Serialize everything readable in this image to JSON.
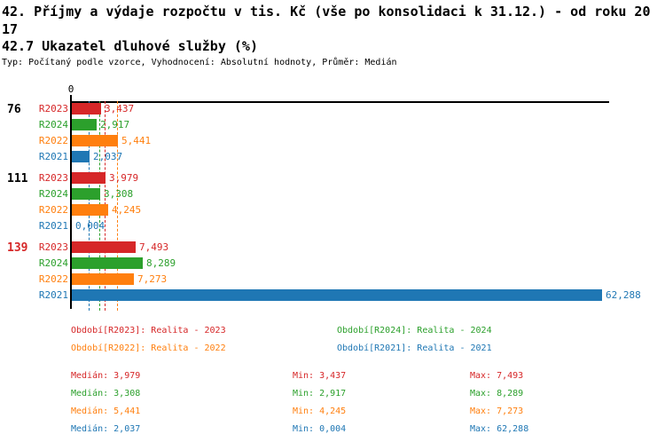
{
  "header": {
    "title": "42. Příjmy a výdaje rozpočtu v tis. Kč (vše po konsolidaci k 31.12.) - od roku 2017",
    "subtitle": "42.7 Ukazatel dluhové služby (%)",
    "meta": "Typ: Počítaný podle vzorce, Vyhodnocení: Absolutní hodnoty, Průměr: Medián"
  },
  "chart_data": {
    "type": "bar",
    "orientation": "horizontal",
    "title": "42.7 Ukazatel dluhové služby (%)",
    "xlabel": "",
    "ylabel": "",
    "axis": {
      "zero_label": "0",
      "x_min": 0,
      "x_max_visible": 63,
      "grid": false
    },
    "series": [
      {
        "id": "R2023",
        "name": "Realita - 2023",
        "color": "#d62728"
      },
      {
        "id": "R2024",
        "name": "Realita - 2024",
        "color": "#2ca02c"
      },
      {
        "id": "R2022",
        "name": "Realita - 2022",
        "color": "#ff7f0e"
      },
      {
        "id": "R2021",
        "name": "Realita - 2021",
        "color": "#1f77b4"
      }
    ],
    "groups": [
      {
        "label": "76",
        "label_color": "#000000",
        "values": [
          {
            "series": "R2023",
            "value": 3.437,
            "display": "3,437"
          },
          {
            "series": "R2024",
            "value": 2.917,
            "display": "2,917"
          },
          {
            "series": "R2022",
            "value": 5.441,
            "display": "5,441"
          },
          {
            "series": "R2021",
            "value": 2.037,
            "display": "2,037"
          }
        ]
      },
      {
        "label": "111",
        "label_color": "#000000",
        "values": [
          {
            "series": "R2023",
            "value": 3.979,
            "display": "3,979"
          },
          {
            "series": "R2024",
            "value": 3.308,
            "display": "3,308"
          },
          {
            "series": "R2022",
            "value": 4.245,
            "display": "4,245"
          },
          {
            "series": "R2021",
            "value": 0.004,
            "display": "0,004"
          }
        ]
      },
      {
        "label": "139",
        "label_color": "#d62728",
        "values": [
          {
            "series": "R2023",
            "value": 7.493,
            "display": "7,493"
          },
          {
            "series": "R2024",
            "value": 8.289,
            "display": "8,289"
          },
          {
            "series": "R2022",
            "value": 7.273,
            "display": "7,273"
          },
          {
            "series": "R2021",
            "value": 62.288,
            "display": "62,288"
          }
        ]
      }
    ],
    "median_lines": [
      {
        "series": "R2023",
        "value": 3.979
      },
      {
        "series": "R2024",
        "value": 3.308
      },
      {
        "series": "R2022",
        "value": 5.441
      },
      {
        "series": "R2021",
        "value": 2.037
      }
    ]
  },
  "legend": {
    "items": [
      {
        "series": "R2023",
        "label": "Období[R2023]: Realita - 2023",
        "color": "#d62728"
      },
      {
        "series": "R2024",
        "label": "Období[R2024]: Realita - 2024",
        "color": "#2ca02c"
      },
      {
        "series": "R2022",
        "label": "Období[R2022]: Realita - 2022",
        "color": "#ff7f0e"
      },
      {
        "series": "R2021",
        "label": "Období[R2021]: Realita - 2021",
        "color": "#1f77b4"
      }
    ]
  },
  "stats": {
    "median_label": "Medián",
    "min_label": "Min",
    "max_label": "Max",
    "rows": [
      {
        "series": "R2023",
        "color": "#d62728",
        "median": "3,979",
        "min": "3,437",
        "max": "7,493"
      },
      {
        "series": "R2024",
        "color": "#2ca02c",
        "median": "3,308",
        "min": "2,917",
        "max": "8,289"
      },
      {
        "series": "R2022",
        "color": "#ff7f0e",
        "median": "5,441",
        "min": "4,245",
        "max": "7,273"
      },
      {
        "series": "R2021",
        "color": "#1f77b4",
        "median": "2,037",
        "min": "0,004",
        "max": "62,288"
      }
    ]
  }
}
